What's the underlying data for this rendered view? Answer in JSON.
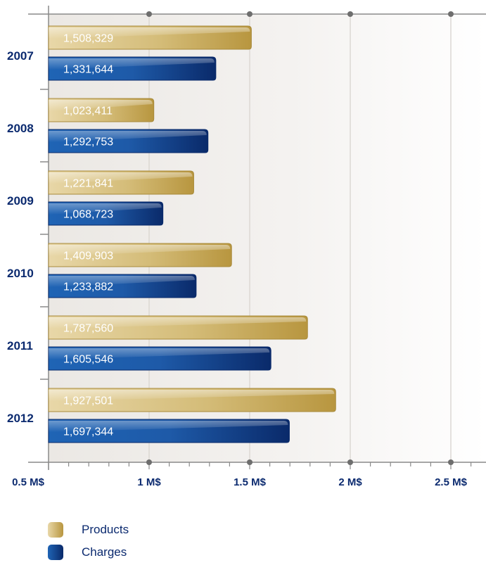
{
  "chart_data": {
    "type": "bar",
    "orientation": "horizontal",
    "categories": [
      "2007",
      "2008",
      "2009",
      "2010",
      "2011",
      "2012"
    ],
    "series": [
      {
        "name": "Products",
        "values": [
          1508329,
          1023411,
          1221841,
          1409903,
          1787560,
          1927501
        ],
        "labels": [
          "1,508,329",
          "1,023,411",
          "1,221,841",
          "1,409,903",
          "1,787,560",
          "1,927,501"
        ]
      },
      {
        "name": "Charges",
        "values": [
          1331644,
          1292753,
          1068723,
          1233882,
          1605546,
          1697344
        ],
        "labels": [
          "1,331,644",
          "1,292,753",
          "1,068,723",
          "1,233,882",
          "1,605,546",
          "1,697,344"
        ]
      }
    ],
    "x_ticks": [
      "0.5 M$",
      "1 M$",
      "1.5 M$",
      "2 M$",
      "2.5 M$"
    ],
    "xlim": [
      500000,
      2700000
    ],
    "grid": true,
    "legend": "bottom-left",
    "colors": {
      "Products": "#c9ac5a",
      "Charges": "#1a4f9c"
    }
  },
  "legend": {
    "products_label": "Products",
    "charges_label": "Charges"
  }
}
